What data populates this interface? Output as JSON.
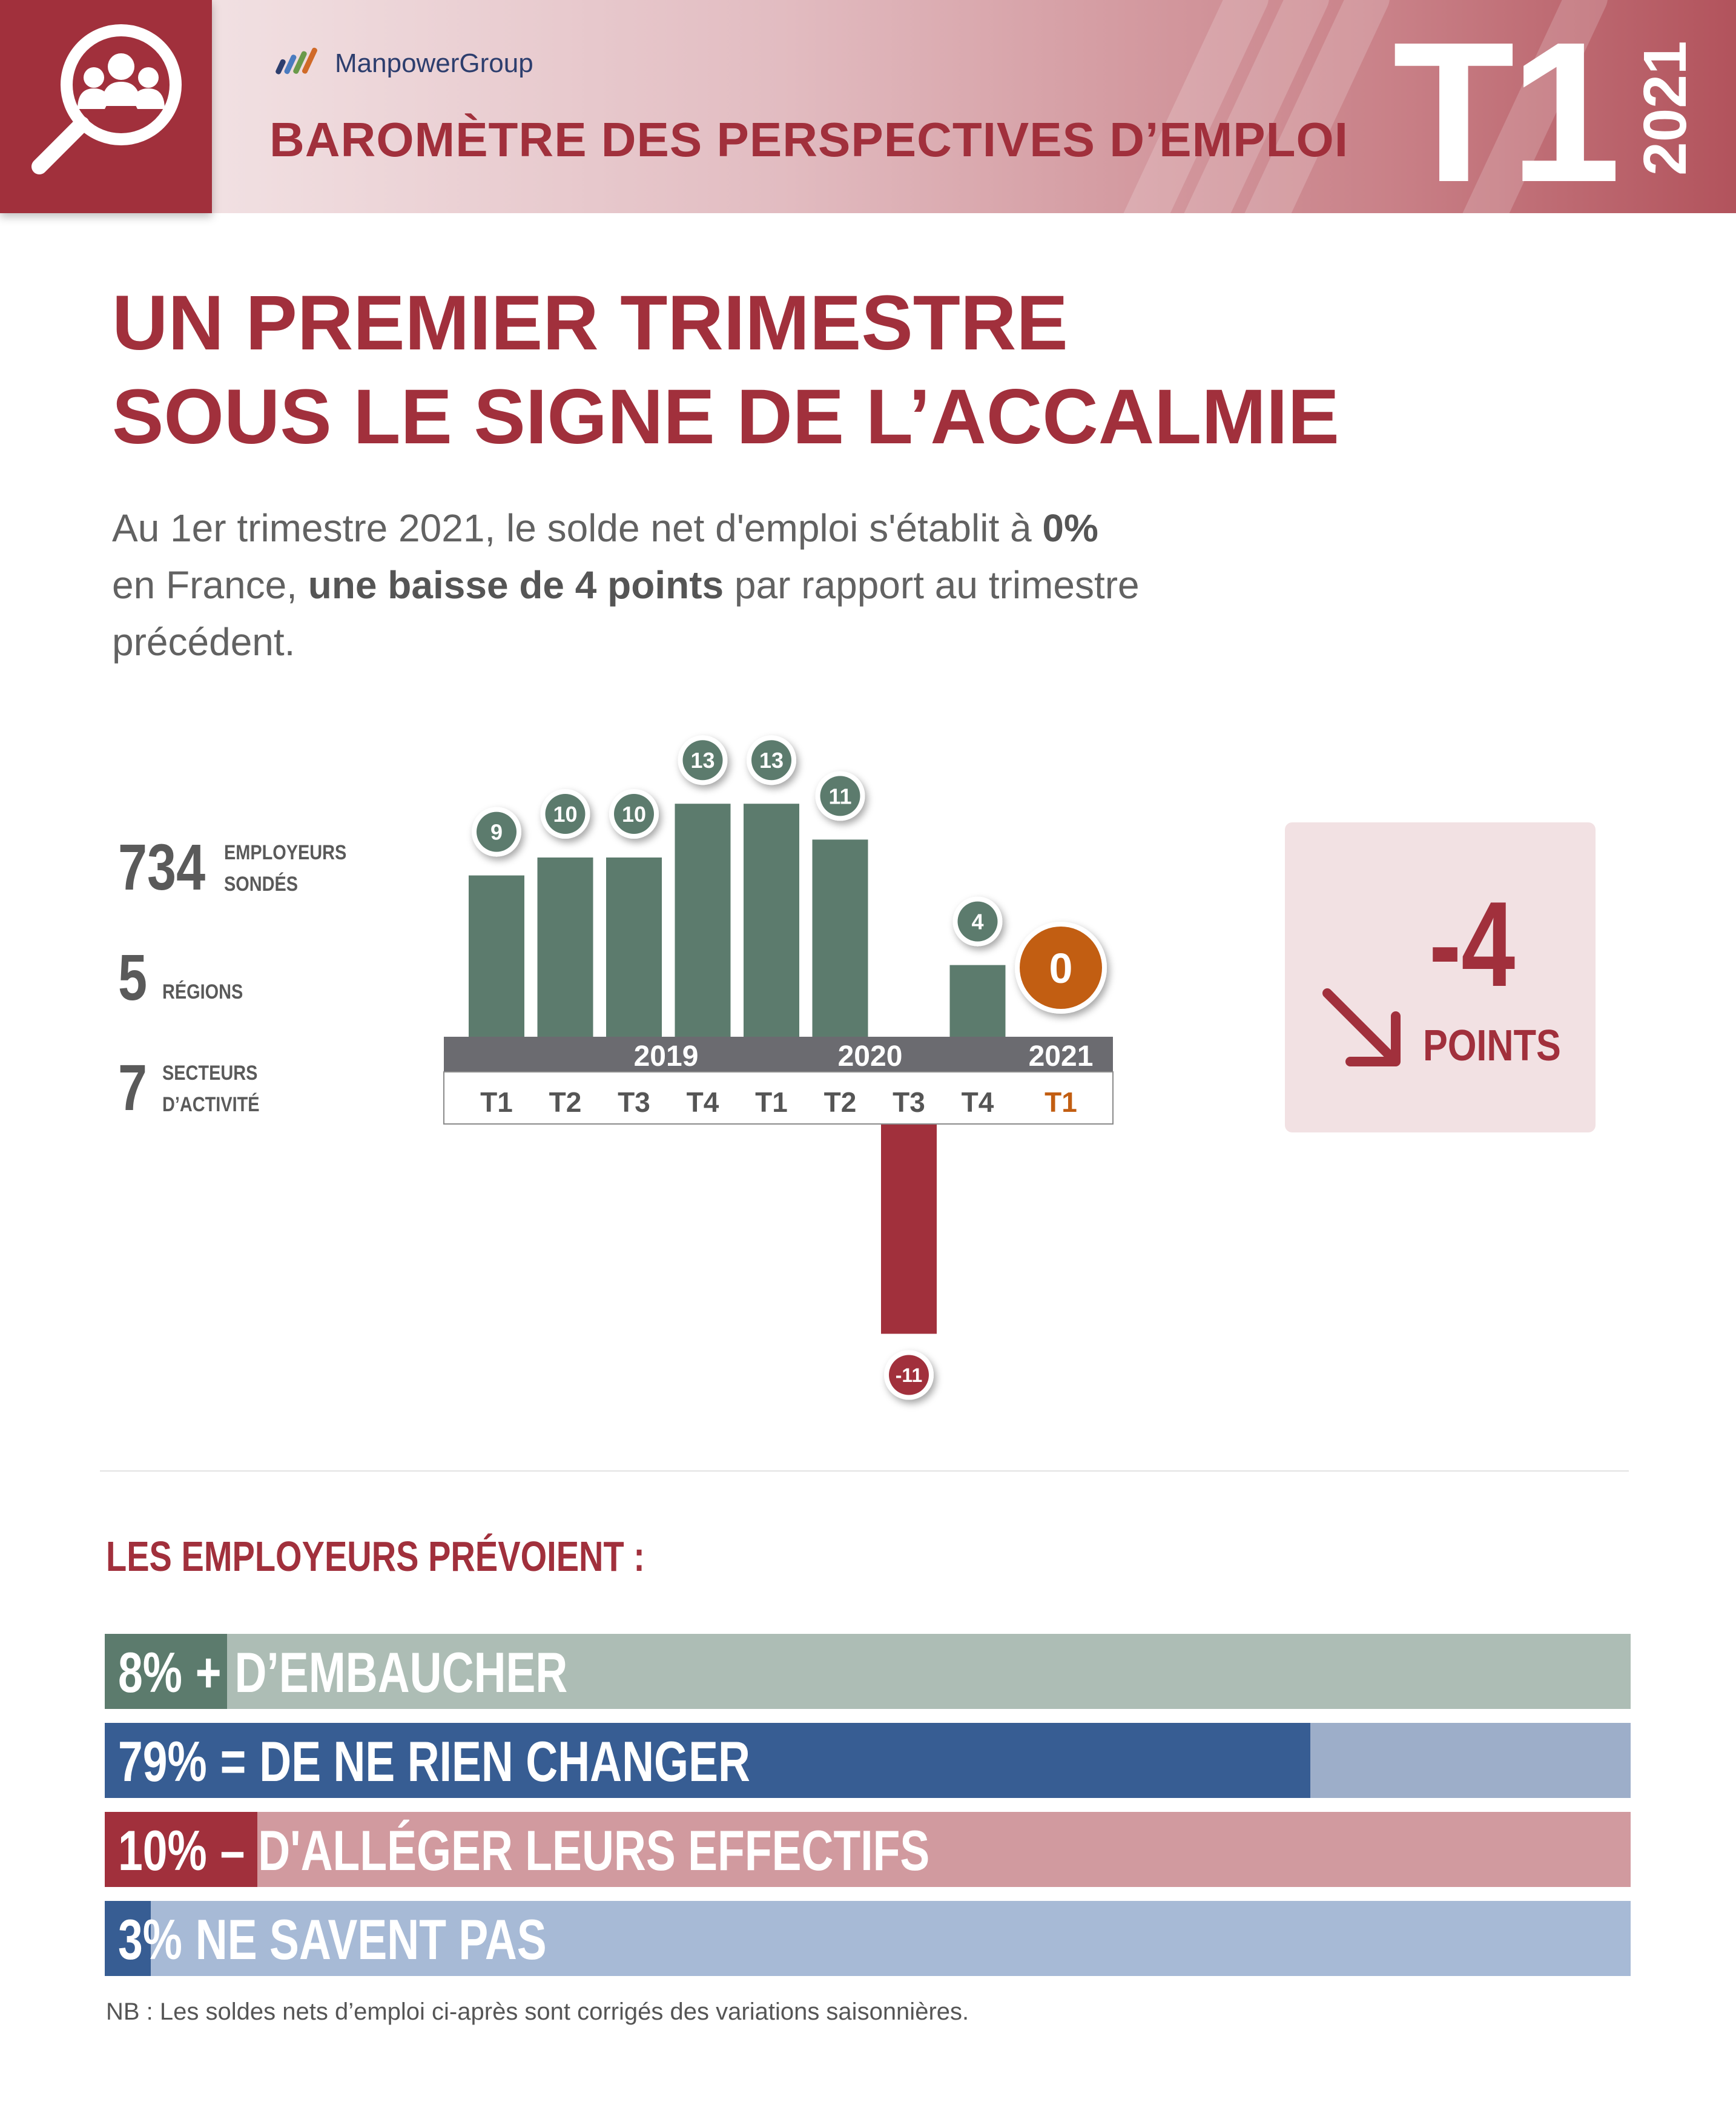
{
  "header": {
    "brand": "ManpowerGroup",
    "title": "BAROMÈTRE DES PERSPECTIVES D’EMPLOI",
    "quarter": "T1",
    "year": "2021"
  },
  "headline": {
    "line1": "UN PREMIER TRIMESTRE",
    "line2": "SOUS LE SIGNE DE L’ACCALMIE"
  },
  "intro": {
    "part1": "Au 1er trimestre 2021, le solde net d'emploi s'établit à ",
    "bold1": "0%",
    "part2": " en France, ",
    "bold2": "une baisse de 4 points",
    "part3": " par rapport au trimestre précédent."
  },
  "stats": [
    {
      "number": "734",
      "label_line1": "EMPLOYEURS",
      "label_line2": "SONDÉS"
    },
    {
      "number": "5",
      "label_line1": "RÉGIONS",
      "label_line2": ""
    },
    {
      "number": "7",
      "label_line1": "SECTEURS",
      "label_line2": "D’ACTIVITÉ"
    }
  ],
  "delta": {
    "value": "-4",
    "unit": "POINTS"
  },
  "colors": {
    "brand_red": "#a1303c",
    "bar_green": "#5c7b6d",
    "current_orange": "#c25e12",
    "axis_gray": "#6b6b70",
    "navy": "#375d93"
  },
  "chart_data": {
    "type": "bar",
    "categories": [
      "T1",
      "T2",
      "T3",
      "T4",
      "T1",
      "T2",
      "T3",
      "T4",
      "T1"
    ],
    "years": [
      {
        "label": "2019",
        "start": 0,
        "end": 3
      },
      {
        "label": "2020",
        "start": 4,
        "end": 7
      },
      {
        "label": "2021",
        "start": 8,
        "end": 8
      }
    ],
    "values": [
      9,
      10,
      10,
      13,
      13,
      11,
      -11,
      4,
      0
    ],
    "highlight_index": 8,
    "ylim": [
      -11,
      13
    ]
  },
  "employers": {
    "title": "LES EMPLOYEURS PRÉVOIENT :",
    "bars": [
      {
        "pct_label": "8%",
        "sign": "+",
        "text": "D’EMBAUCHER",
        "value": 8,
        "fill": "#5c7b6d",
        "bg": "#adbdb5"
      },
      {
        "pct_label": "79%",
        "sign": "=",
        "text": "DE NE RIEN CHANGER",
        "value": 79,
        "fill": "#375d93",
        "bg": "#9daec9"
      },
      {
        "pct_label": "10%",
        "sign": "–",
        "text": "D'ALLÉGER LEURS EFFECTIFS",
        "value": 10,
        "fill": "#a1303c",
        "bg": "#d19a9f"
      },
      {
        "pct_label": "3%",
        "sign": "",
        "text": "NE SAVENT PAS",
        "value": 3,
        "fill": "#375d93",
        "bg": "#a7bad6"
      }
    ]
  },
  "note": "NB : Les soldes nets d’emploi ci-après sont corrigés des variations saisonnières."
}
